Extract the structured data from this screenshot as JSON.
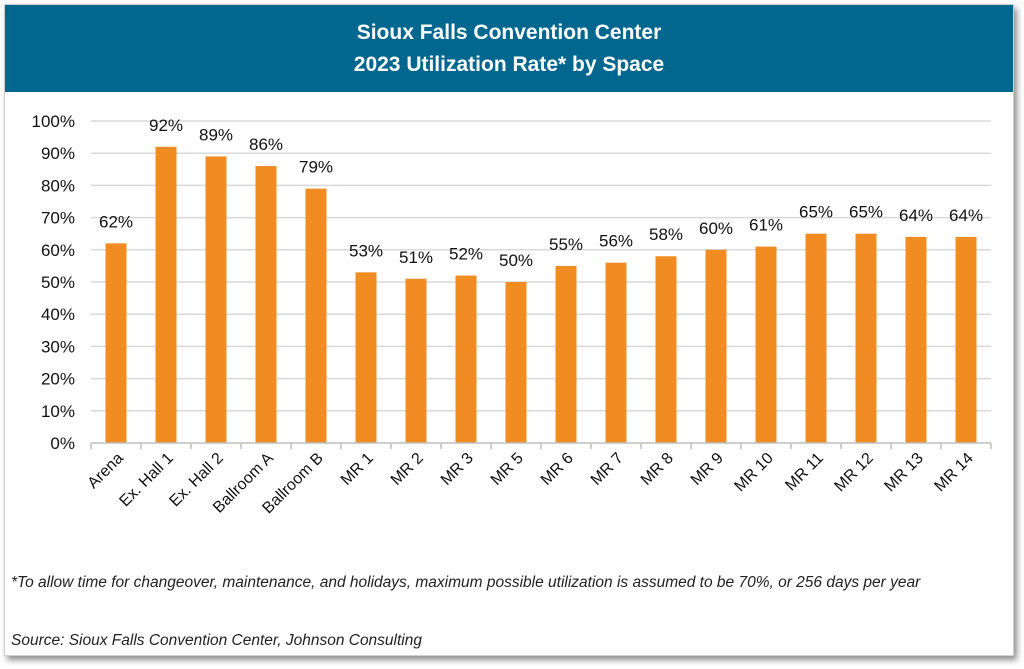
{
  "header": {
    "title_line1": "Sioux Falls Convention Center",
    "title_line2": "2023 Utilization Rate* by Space"
  },
  "footnote": "*To allow time for changeover, maintenance, and holidays, maximum possible utilization is assumed to be 70%, or 256 days per year",
  "source": "Source: Sioux Falls Convention Center, Johnson Consulting",
  "colors": {
    "header_bg": "#02678e",
    "bar": "#f08c22",
    "grid": "#d9d9d9"
  },
  "chart_data": {
    "type": "bar",
    "title": "Sioux Falls Convention Center 2023 Utilization Rate* by Space",
    "xlabel": "",
    "ylabel": "",
    "ylim": [
      0,
      100
    ],
    "y_ticks": [
      "0%",
      "10%",
      "20%",
      "30%",
      "40%",
      "50%",
      "60%",
      "70%",
      "80%",
      "90%",
      "100%"
    ],
    "grid": true,
    "legend": "none",
    "categories": [
      "Arena",
      "Ex. Hall 1",
      "Ex. Hall 2",
      "Ballroom A",
      "Ballroom B",
      "MR 1",
      "MR 2",
      "MR 3",
      "MR 5",
      "MR 6",
      "MR 7",
      "MR 8",
      "MR 9",
      "MR 10",
      "MR 11",
      "MR 12",
      "MR 13",
      "MR 14"
    ],
    "values": [
      62,
      92,
      89,
      86,
      79,
      53,
      51,
      52,
      50,
      55,
      56,
      58,
      60,
      61,
      65,
      65,
      64,
      64
    ],
    "data_labels": [
      "62%",
      "92%",
      "89%",
      "86%",
      "79%",
      "53%",
      "51%",
      "52%",
      "50%",
      "55%",
      "56%",
      "58%",
      "60%",
      "61%",
      "65%",
      "65%",
      "64%",
      "64%"
    ]
  }
}
